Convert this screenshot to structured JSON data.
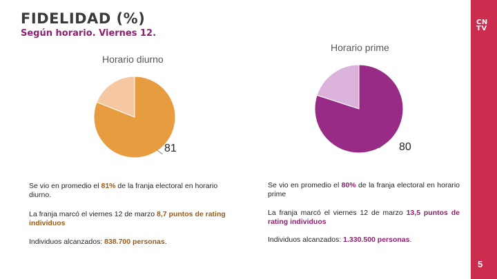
{
  "title": "FIDELIDAD (%)",
  "subtitle": "Según horario. Viernes 12.",
  "logo": {
    "line1": "CN",
    "line2": "TV"
  },
  "page_number": "5",
  "colors": {
    "sidebar": "#cc2c4d",
    "subtitle": "#8e1f6f",
    "diurno_main": "#e69c3f",
    "diurno_rest": "#f6c8a1",
    "prime_main": "#982b85",
    "prime_rest": "#dbb3da",
    "highlight_diurno": "#9c5a12",
    "highlight_prime": "#8e1f6f"
  },
  "chart_data": [
    {
      "type": "pie",
      "title": "Horario diurno",
      "values": [
        81,
        19
      ],
      "data_labels": [
        "81"
      ]
    },
    {
      "type": "pie",
      "title": "Horario prime",
      "values": [
        80,
        20
      ],
      "data_labels": [
        "80"
      ]
    }
  ],
  "left": {
    "p1": {
      "pre": "Se vio en promedio el ",
      "hl": "81%",
      "post": " de la franja electoral en horario diurno."
    },
    "p2": {
      "pre": "La franja marcó el viernes 12 de marzo ",
      "hl": "8,7 puntos de rating individuos",
      "post": ""
    },
    "p3": {
      "pre": "Individuos alcanzados: ",
      "hl": "838.700 personas",
      "post": "."
    }
  },
  "right": {
    "p1": {
      "pre": "Se vio en promedio el ",
      "hl": "80%",
      "post": " de la franja electoral en horario prime"
    },
    "p2": {
      "pre": "La franja marcó el viernes 12 de marzo ",
      "hl": "13,5 puntos de rating individuos",
      "post": ""
    },
    "p3": {
      "pre": "Individuos alcanzados: ",
      "hl": "1.330.500 personas",
      "post": "."
    }
  }
}
